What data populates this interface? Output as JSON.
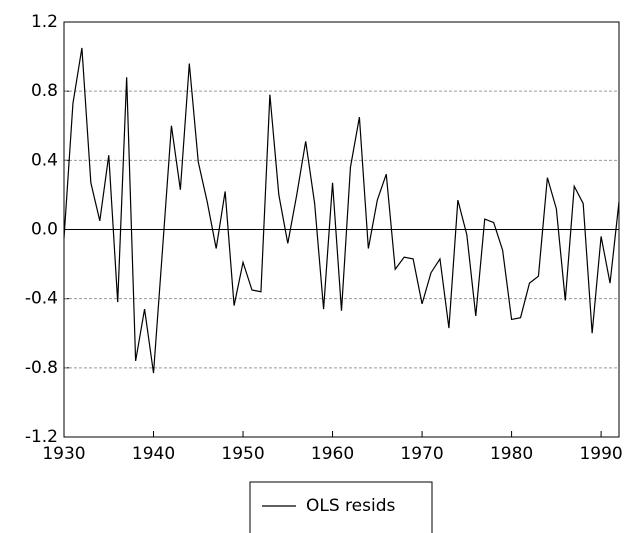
{
  "chart_data": {
    "type": "line",
    "x": [
      1930,
      1931,
      1932,
      1933,
      1934,
      1935,
      1936,
      1937,
      1938,
      1939,
      1940,
      1941,
      1942,
      1943,
      1944,
      1945,
      1946,
      1947,
      1948,
      1949,
      1950,
      1951,
      1952,
      1953,
      1954,
      1955,
      1956,
      1957,
      1958,
      1959,
      1960,
      1961,
      1962,
      1963,
      1964,
      1965,
      1966,
      1967,
      1968,
      1969,
      1970,
      1971,
      1972,
      1973,
      1974,
      1975,
      1976,
      1977,
      1978,
      1979,
      1980,
      1981,
      1982,
      1983,
      1984,
      1985,
      1986,
      1987,
      1988,
      1989,
      1990,
      1991,
      1992
    ],
    "series": [
      {
        "name": "OLS resids",
        "color": "#000000",
        "values": [
          -0.05,
          0.73,
          1.05,
          0.27,
          0.05,
          0.43,
          -0.42,
          0.88,
          -0.76,
          -0.46,
          -0.83,
          -0.12,
          0.6,
          0.23,
          0.96,
          0.39,
          0.16,
          -0.11,
          0.22,
          -0.44,
          -0.19,
          -0.35,
          -0.36,
          0.78,
          0.2,
          -0.08,
          0.2,
          0.51,
          0.15,
          -0.46,
          0.27,
          -0.47,
          0.36,
          0.65,
          -0.11,
          0.17,
          0.32,
          -0.23,
          -0.16,
          -0.17,
          -0.43,
          -0.25,
          -0.17,
          -0.57,
          0.17,
          -0.03,
          -0.5,
          0.06,
          0.04,
          -0.12,
          -0.52,
          -0.51,
          -0.31,
          -0.27,
          0.3,
          0.12,
          -0.41,
          0.25,
          0.15,
          -0.6,
          -0.04,
          -0.31,
          0.16
        ]
      }
    ],
    "xlim": [
      1930,
      1992
    ],
    "xticks": [
      1930,
      1940,
      1950,
      1960,
      1970,
      1980,
      1990
    ],
    "ylim": [
      -1.2,
      1.2
    ],
    "yticks": [
      -1.2,
      -0.8,
      -0.4,
      {
        "value": 0,
        "label": "0.0"
      },
      0.4,
      0.8,
      1.2
    ],
    "grid": true,
    "legend": "bottom"
  }
}
